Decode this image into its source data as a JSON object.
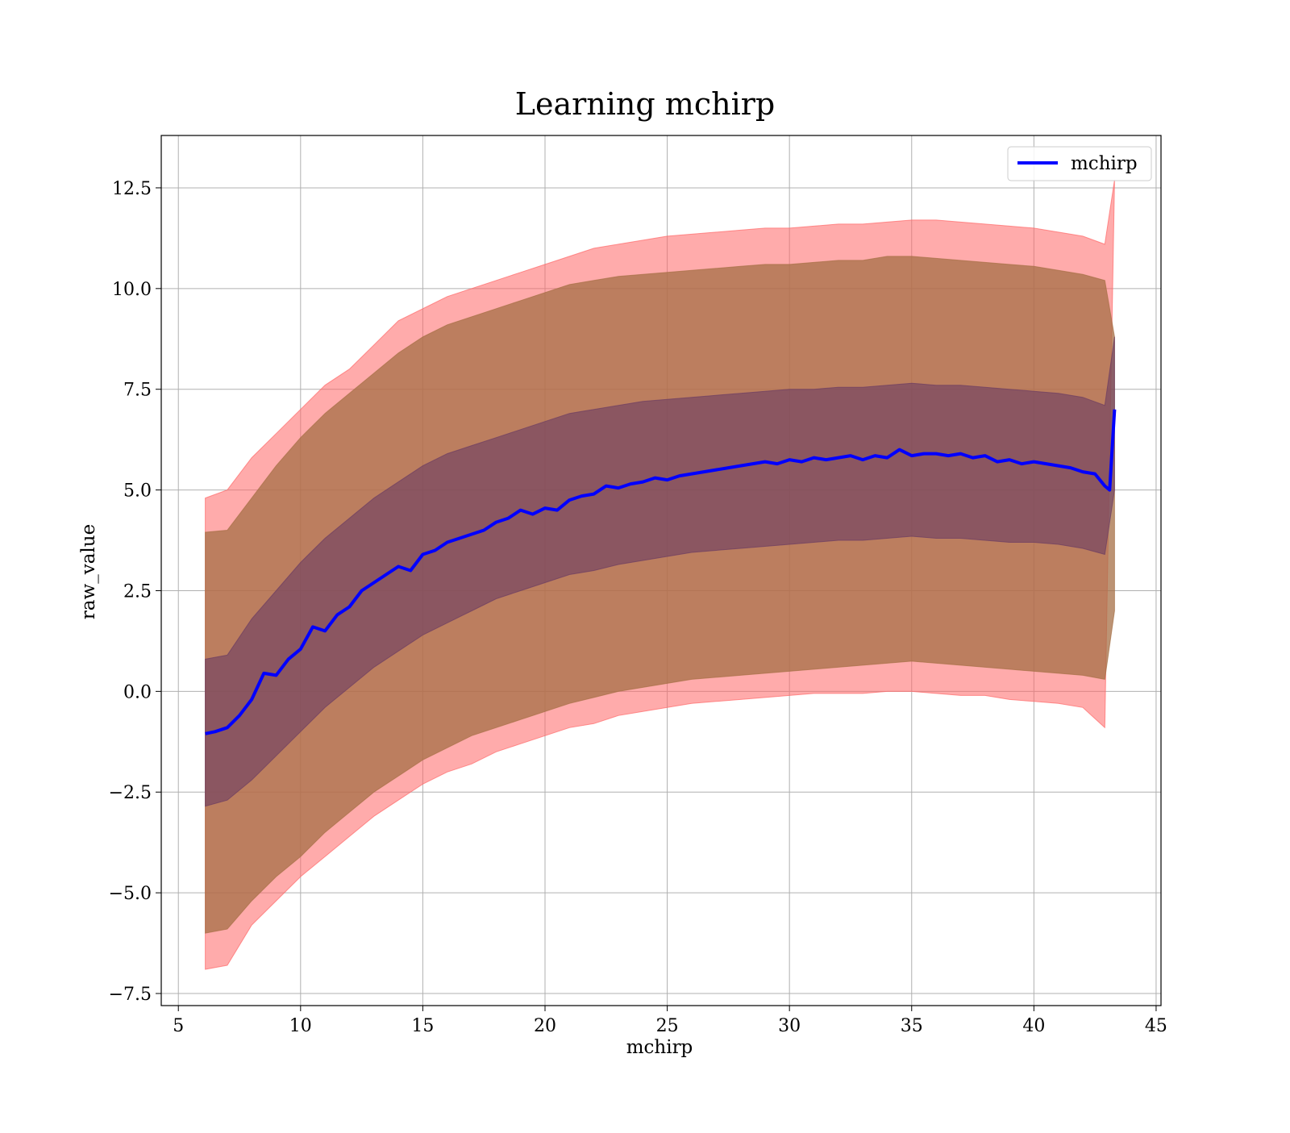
{
  "chart_data": {
    "type": "line",
    "title": "Learning mchirp",
    "xlabel": "mchirp",
    "ylabel": "raw_value",
    "xlim": [
      4.3,
      45.2
    ],
    "ylim": [
      -7.8,
      13.8
    ],
    "xticks": [
      5,
      10,
      15,
      20,
      25,
      30,
      35,
      40,
      45
    ],
    "xtick_labels": [
      "5",
      "10",
      "15",
      "20",
      "25",
      "30",
      "35",
      "40",
      "45"
    ],
    "yticks": [
      -7.5,
      -5.0,
      -2.5,
      0.0,
      2.5,
      5.0,
      7.5,
      10.0,
      12.5
    ],
    "ytick_labels": [
      "−7.5",
      "−5.0",
      "−2.5",
      "0.0",
      "2.5",
      "5.0",
      "7.5",
      "10.0",
      "12.5"
    ],
    "grid": true,
    "legend_position": "upper right",
    "legend": [
      "mchirp"
    ],
    "colors": {
      "line": "#0000ff",
      "band_outer": "#ff6666",
      "band_middle": "#a56f45",
      "band_inner": "#6b3c62",
      "grid": "#b0b0b0"
    },
    "series": [
      {
        "name": "mchirp",
        "x": [
          6.1,
          6.5,
          7.0,
          7.5,
          8.0,
          8.5,
          9.0,
          9.5,
          10.0,
          10.5,
          11.0,
          11.5,
          12.0,
          12.5,
          13.0,
          13.5,
          14.0,
          14.5,
          15.0,
          15.5,
          16.0,
          16.5,
          17.0,
          17.5,
          18.0,
          18.5,
          19.0,
          19.5,
          20.0,
          20.5,
          21.0,
          21.5,
          22.0,
          22.5,
          23.0,
          23.5,
          24.0,
          24.5,
          25.0,
          25.5,
          26.0,
          26.5,
          27.0,
          27.5,
          28.0,
          28.5,
          29.0,
          29.5,
          30.0,
          30.5,
          31.0,
          31.5,
          32.0,
          32.5,
          33.0,
          33.5,
          34.0,
          34.5,
          35.0,
          35.5,
          36.0,
          36.5,
          37.0,
          37.5,
          38.0,
          38.5,
          39.0,
          39.5,
          40.0,
          40.5,
          41.0,
          41.5,
          42.0,
          42.5,
          42.9,
          43.1,
          43.3
        ],
        "y": [
          -1.05,
          -1.0,
          -0.9,
          -0.6,
          -0.2,
          0.45,
          0.4,
          0.8,
          1.05,
          1.6,
          1.5,
          1.9,
          2.1,
          2.5,
          2.7,
          2.9,
          3.1,
          3.0,
          3.4,
          3.5,
          3.7,
          3.8,
          3.9,
          4.0,
          4.2,
          4.3,
          4.5,
          4.4,
          4.55,
          4.5,
          4.75,
          4.85,
          4.9,
          5.1,
          5.05,
          5.15,
          5.2,
          5.3,
          5.25,
          5.35,
          5.4,
          5.45,
          5.5,
          5.55,
          5.6,
          5.65,
          5.7,
          5.65,
          5.75,
          5.7,
          5.8,
          5.75,
          5.8,
          5.85,
          5.75,
          5.85,
          5.8,
          6.0,
          5.85,
          5.9,
          5.9,
          5.85,
          5.9,
          5.8,
          5.85,
          5.7,
          5.75,
          5.65,
          5.7,
          5.65,
          5.6,
          5.55,
          5.45,
          5.4,
          5.1,
          5.0,
          7.0
        ]
      }
    ],
    "bands": [
      {
        "label": "outer",
        "x": [
          6.1,
          7.0,
          8.0,
          9.0,
          10.0,
          11.0,
          12.0,
          13.0,
          14.0,
          15.0,
          16.0,
          17.0,
          18.0,
          19.0,
          20.0,
          21.0,
          22.0,
          23.0,
          24.0,
          25.0,
          26.0,
          27.0,
          28.0,
          29.0,
          30.0,
          31.0,
          32.0,
          33.0,
          34.0,
          35.0,
          36.0,
          37.0,
          38.0,
          39.0,
          40.0,
          41.0,
          42.0,
          42.9,
          43.3
        ],
        "lower": [
          -6.9,
          -6.8,
          -5.8,
          -5.2,
          -4.6,
          -4.1,
          -3.6,
          -3.1,
          -2.7,
          -2.3,
          -2.0,
          -1.8,
          -1.5,
          -1.3,
          -1.1,
          -0.9,
          -0.8,
          -0.6,
          -0.5,
          -0.4,
          -0.3,
          -0.25,
          -0.2,
          -0.15,
          -0.1,
          -0.05,
          -0.05,
          -0.05,
          0.0,
          0.0,
          -0.05,
          -0.1,
          -0.1,
          -0.2,
          -0.25,
          -0.3,
          -0.4,
          -0.9,
          12.7
        ],
        "upper": [
          4.8,
          5.0,
          5.8,
          6.4,
          7.0,
          7.6,
          8.0,
          8.6,
          9.2,
          9.5,
          9.8,
          10.0,
          10.2,
          10.4,
          10.6,
          10.8,
          11.0,
          11.1,
          11.2,
          11.3,
          11.35,
          11.4,
          11.45,
          11.5,
          11.5,
          11.55,
          11.6,
          11.6,
          11.65,
          11.7,
          11.7,
          11.65,
          11.6,
          11.55,
          11.5,
          11.4,
          11.3,
          11.1,
          12.7
        ]
      },
      {
        "label": "middle",
        "x": [
          6.1,
          7.0,
          8.0,
          9.0,
          10.0,
          11.0,
          12.0,
          13.0,
          14.0,
          15.0,
          16.0,
          17.0,
          18.0,
          19.0,
          20.0,
          21.0,
          22.0,
          23.0,
          24.0,
          25.0,
          26.0,
          27.0,
          28.0,
          29.0,
          30.0,
          31.0,
          32.0,
          33.0,
          34.0,
          35.0,
          36.0,
          37.0,
          38.0,
          39.0,
          40.0,
          41.0,
          42.0,
          42.9,
          43.3
        ],
        "lower": [
          -6.0,
          -5.9,
          -5.2,
          -4.6,
          -4.1,
          -3.5,
          -3.0,
          -2.5,
          -2.1,
          -1.7,
          -1.4,
          -1.1,
          -0.9,
          -0.7,
          -0.5,
          -0.3,
          -0.15,
          0.0,
          0.1,
          0.2,
          0.3,
          0.35,
          0.4,
          0.45,
          0.5,
          0.55,
          0.6,
          0.65,
          0.7,
          0.75,
          0.7,
          0.65,
          0.6,
          0.55,
          0.5,
          0.45,
          0.4,
          0.3,
          2.0
        ],
        "upper": [
          3.95,
          4.0,
          4.8,
          5.6,
          6.3,
          6.9,
          7.4,
          7.9,
          8.4,
          8.8,
          9.1,
          9.3,
          9.5,
          9.7,
          9.9,
          10.1,
          10.2,
          10.3,
          10.35,
          10.4,
          10.45,
          10.5,
          10.55,
          10.6,
          10.6,
          10.65,
          10.7,
          10.7,
          10.8,
          10.8,
          10.75,
          10.7,
          10.65,
          10.6,
          10.55,
          10.45,
          10.35,
          10.2,
          8.8
        ]
      },
      {
        "label": "inner",
        "x": [
          6.1,
          7.0,
          8.0,
          9.0,
          10.0,
          11.0,
          12.0,
          13.0,
          14.0,
          15.0,
          16.0,
          17.0,
          18.0,
          19.0,
          20.0,
          21.0,
          22.0,
          23.0,
          24.0,
          25.0,
          26.0,
          27.0,
          28.0,
          29.0,
          30.0,
          31.0,
          32.0,
          33.0,
          34.0,
          35.0,
          36.0,
          37.0,
          38.0,
          39.0,
          40.0,
          41.0,
          42.0,
          42.9,
          43.3
        ],
        "lower": [
          -2.85,
          -2.7,
          -2.2,
          -1.6,
          -1.0,
          -0.4,
          0.1,
          0.6,
          1.0,
          1.4,
          1.7,
          2.0,
          2.3,
          2.5,
          2.7,
          2.9,
          3.0,
          3.15,
          3.25,
          3.35,
          3.45,
          3.5,
          3.55,
          3.6,
          3.65,
          3.7,
          3.75,
          3.75,
          3.8,
          3.85,
          3.8,
          3.8,
          3.75,
          3.7,
          3.7,
          3.65,
          3.55,
          3.4,
          5.0
        ],
        "upper": [
          0.8,
          0.9,
          1.8,
          2.5,
          3.2,
          3.8,
          4.3,
          4.8,
          5.2,
          5.6,
          5.9,
          6.1,
          6.3,
          6.5,
          6.7,
          6.9,
          7.0,
          7.1,
          7.2,
          7.25,
          7.3,
          7.35,
          7.4,
          7.45,
          7.5,
          7.5,
          7.55,
          7.55,
          7.6,
          7.65,
          7.6,
          7.6,
          7.55,
          7.5,
          7.45,
          7.4,
          7.3,
          7.1,
          8.8
        ]
      }
    ]
  }
}
